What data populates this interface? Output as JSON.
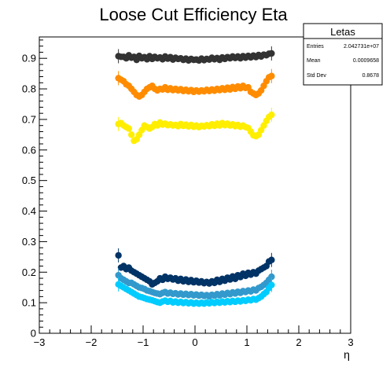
{
  "chart_data": {
    "type": "scatter",
    "title": "Loose Cut Efficiency Eta",
    "xlabel": "η",
    "ylabel": "",
    "xlim": [
      -3,
      3
    ],
    "ylim": [
      0,
      0.97
    ],
    "x_ticks": [
      -3,
      -2,
      -1,
      0,
      1,
      2,
      3
    ],
    "x_tick_labels": [
      "−3",
      "−2",
      "−1",
      "0",
      "1",
      "2",
      "3"
    ],
    "y_ticks": [
      0,
      0.1,
      0.2,
      0.3,
      0.4,
      0.5,
      0.6,
      0.7,
      0.8,
      0.9
    ],
    "y_tick_labels": [
      "0",
      "0.1",
      "0.2",
      "0.3",
      "0.4",
      "0.5",
      "0.6",
      "0.7",
      "0.8",
      "0.9"
    ],
    "grid": false,
    "legend": "none",
    "stats_box": {
      "title": "Letas",
      "rows": [
        {
          "label": "Entries",
          "value": "2.042731e+07"
        },
        {
          "label": "Mean",
          "value": "0.0009658"
        },
        {
          "label": "Std Dev",
          "value": "0.8678"
        }
      ]
    },
    "x": [
      -1.475,
      -1.425,
      -1.375,
      -1.325,
      -1.275,
      -1.225,
      -1.175,
      -1.125,
      -1.075,
      -1.025,
      -0.975,
      -0.925,
      -0.875,
      -0.825,
      -0.775,
      -0.725,
      -0.675,
      -0.625,
      -0.575,
      -0.525,
      -0.475,
      -0.425,
      -0.375,
      -0.325,
      -0.275,
      -0.225,
      -0.175,
      -0.125,
      -0.075,
      -0.025,
      0.025,
      0.075,
      0.125,
      0.175,
      0.225,
      0.275,
      0.325,
      0.375,
      0.425,
      0.475,
      0.525,
      0.575,
      0.625,
      0.675,
      0.725,
      0.775,
      0.825,
      0.875,
      0.925,
      0.975,
      1.025,
      1.075,
      1.125,
      1.175,
      1.225,
      1.275,
      1.325,
      1.375,
      1.425,
      1.475
    ],
    "series": [
      {
        "color": "#333333",
        "values": [
          0.907,
          0.905,
          0.905,
          0.9,
          0.91,
          0.902,
          0.905,
          0.895,
          0.908,
          0.9,
          0.904,
          0.897,
          0.907,
          0.898,
          0.905,
          0.9,
          0.903,
          0.897,
          0.906,
          0.899,
          0.904,
          0.896,
          0.902,
          0.898,
          0.9,
          0.895,
          0.899,
          0.893,
          0.898,
          0.895,
          0.896,
          0.893,
          0.899,
          0.894,
          0.898,
          0.896,
          0.902,
          0.897,
          0.901,
          0.895,
          0.903,
          0.898,
          0.904,
          0.9,
          0.906,
          0.901,
          0.906,
          0.9,
          0.907,
          0.902,
          0.908,
          0.903,
          0.909,
          0.904,
          0.911,
          0.906,
          0.912,
          0.91,
          0.915,
          0.916
        ]
      },
      {
        "color": "#ff8c00",
        "values": [
          0.835,
          0.83,
          0.825,
          0.815,
          0.81,
          0.8,
          0.79,
          0.78,
          0.775,
          0.78,
          0.79,
          0.8,
          0.805,
          0.81,
          0.8,
          0.795,
          0.8,
          0.798,
          0.805,
          0.797,
          0.802,
          0.796,
          0.8,
          0.795,
          0.799,
          0.793,
          0.797,
          0.792,
          0.796,
          0.79,
          0.795,
          0.791,
          0.795,
          0.792,
          0.797,
          0.793,
          0.798,
          0.794,
          0.8,
          0.796,
          0.802,
          0.797,
          0.804,
          0.798,
          0.806,
          0.8,
          0.808,
          0.802,
          0.81,
          0.803,
          0.805,
          0.79,
          0.785,
          0.78,
          0.785,
          0.795,
          0.81,
          0.825,
          0.838,
          0.842
        ]
      },
      {
        "color": "#ffee00",
        "values": [
          0.685,
          0.688,
          0.68,
          0.675,
          0.67,
          0.65,
          0.63,
          0.635,
          0.65,
          0.665,
          0.68,
          0.675,
          0.67,
          0.675,
          0.685,
          0.68,
          0.69,
          0.683,
          0.686,
          0.681,
          0.684,
          0.68,
          0.682,
          0.678,
          0.685,
          0.679,
          0.683,
          0.677,
          0.682,
          0.676,
          0.68,
          0.675,
          0.679,
          0.677,
          0.681,
          0.678,
          0.684,
          0.679,
          0.686,
          0.68,
          0.688,
          0.681,
          0.686,
          0.68,
          0.684,
          0.678,
          0.682,
          0.676,
          0.68,
          0.675,
          0.672,
          0.66,
          0.648,
          0.645,
          0.65,
          0.665,
          0.68,
          0.695,
          0.708,
          0.715
        ]
      },
      {
        "color": "#003366",
        "values": [
          0.255,
          0.215,
          0.22,
          0.21,
          0.215,
          0.205,
          0.2,
          0.195,
          0.19,
          0.185,
          0.18,
          0.175,
          0.17,
          0.16,
          0.165,
          0.17,
          0.18,
          0.175,
          0.185,
          0.178,
          0.182,
          0.176,
          0.18,
          0.172,
          0.178,
          0.17,
          0.176,
          0.168,
          0.174,
          0.167,
          0.172,
          0.166,
          0.17,
          0.164,
          0.168,
          0.163,
          0.17,
          0.165,
          0.175,
          0.168,
          0.178,
          0.172,
          0.182,
          0.176,
          0.186,
          0.178,
          0.19,
          0.184,
          0.195,
          0.188,
          0.198,
          0.192,
          0.2,
          0.195,
          0.205,
          0.21,
          0.215,
          0.22,
          0.235,
          0.24
        ]
      },
      {
        "color": "#3399cc",
        "values": [
          0.19,
          0.18,
          0.175,
          0.17,
          0.165,
          0.165,
          0.16,
          0.155,
          0.15,
          0.148,
          0.145,
          0.14,
          0.138,
          0.135,
          0.132,
          0.13,
          0.128,
          0.132,
          0.135,
          0.13,
          0.133,
          0.129,
          0.131,
          0.127,
          0.13,
          0.126,
          0.129,
          0.125,
          0.128,
          0.124,
          0.127,
          0.123,
          0.126,
          0.122,
          0.125,
          0.121,
          0.126,
          0.123,
          0.128,
          0.124,
          0.13,
          0.126,
          0.132,
          0.128,
          0.134,
          0.13,
          0.136,
          0.132,
          0.138,
          0.135,
          0.14,
          0.137,
          0.143,
          0.14,
          0.148,
          0.152,
          0.158,
          0.165,
          0.175,
          0.185
        ]
      },
      {
        "color": "#00ccff",
        "values": [
          0.16,
          0.155,
          0.15,
          0.145,
          0.14,
          0.135,
          0.13,
          0.125,
          0.12,
          0.118,
          0.115,
          0.112,
          0.11,
          0.108,
          0.105,
          0.102,
          0.1,
          0.104,
          0.107,
          0.103,
          0.106,
          0.101,
          0.104,
          0.1,
          0.103,
          0.099,
          0.102,
          0.098,
          0.101,
          0.097,
          0.1,
          0.097,
          0.1,
          0.097,
          0.101,
          0.098,
          0.102,
          0.099,
          0.103,
          0.1,
          0.104,
          0.101,
          0.105,
          0.102,
          0.106,
          0.103,
          0.107,
          0.104,
          0.108,
          0.106,
          0.11,
          0.108,
          0.112,
          0.11,
          0.115,
          0.12,
          0.128,
          0.135,
          0.148,
          0.158
        ]
      }
    ]
  }
}
